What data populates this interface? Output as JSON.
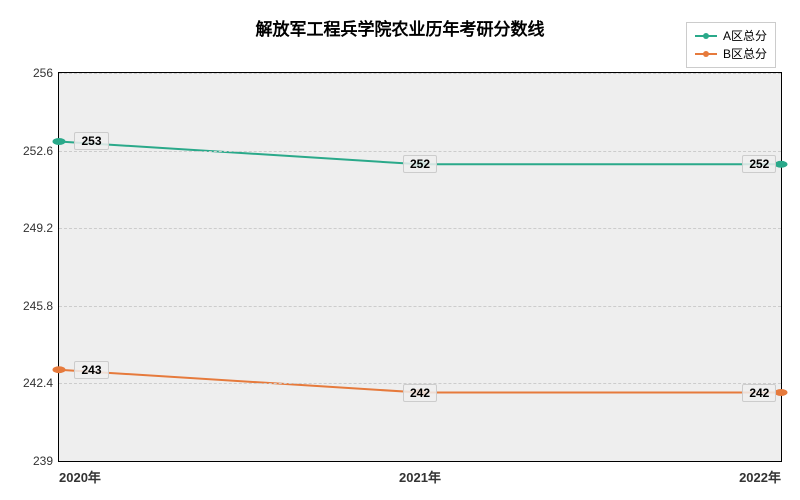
{
  "chart": {
    "type": "line",
    "title": "解放军工程兵学院农业历年考研分数线",
    "title_fontsize": 17,
    "background_color": "#ffffff",
    "plot_background_color": "#eeeeee",
    "grid_color": "#cccccc",
    "border_color": "#000000",
    "x": {
      "categories": [
        "2020年",
        "2021年",
        "2022年"
      ],
      "positions_pct": [
        0,
        50,
        100
      ]
    },
    "y": {
      "min": 239,
      "max": 256,
      "ticks": [
        239,
        242.4,
        245.8,
        249.2,
        252.6,
        256
      ],
      "tick_labels": [
        "239",
        "242.4",
        "245.8",
        "249.2",
        "252.6",
        "256"
      ],
      "label_fontsize": 12
    },
    "series": [
      {
        "name": "A区总分",
        "color": "#2aa98a",
        "line_width": 2,
        "marker": "circle",
        "marker_size": 6,
        "values": [
          253,
          252,
          252
        ],
        "labels": [
          "253",
          "252",
          "252"
        ]
      },
      {
        "name": "B区总分",
        "color": "#e67a3c",
        "line_width": 2,
        "marker": "circle",
        "marker_size": 6,
        "values": [
          243,
          242,
          242
        ],
        "labels": [
          "243",
          "242",
          "242"
        ]
      }
    ],
    "legend": {
      "position": "top-right",
      "fontsize": 12
    }
  }
}
